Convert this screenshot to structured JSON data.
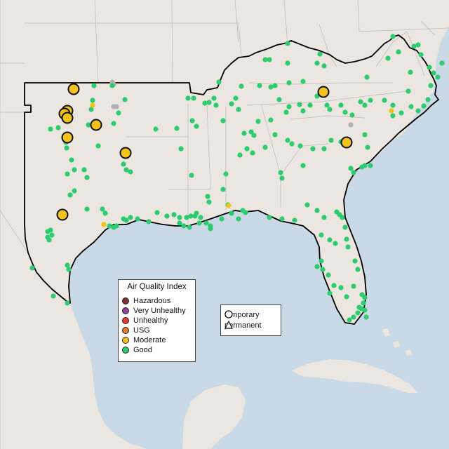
{
  "legend": {
    "title": "Air Quality Index",
    "items": [
      {
        "label": "Hazardous",
        "color": "#7e2f3b"
      },
      {
        "label": "Very Unhealthy",
        "color": "#8f3f97"
      },
      {
        "label": "Unhealthy",
        "color": "#e8382f"
      },
      {
        "label": "USG",
        "color": "#e8782a"
      },
      {
        "label": "Moderate",
        "color": "#f3c21b"
      },
      {
        "label": "Good",
        "color": "#2ecc71"
      }
    ]
  },
  "shape_legend": {
    "items": [
      {
        "label": "temporary",
        "shape": "circle-icon"
      },
      {
        "label": "permanent",
        "shape": "triangle-icon"
      }
    ]
  },
  "colors": {
    "water": "#c9d9e6",
    "land": "#ebe6df",
    "region_outline": "#000000",
    "good": "#2ecc71",
    "moderate": "#f3c21b",
    "no_data": "#b0b0b0"
  },
  "stations": {
    "moderate_temporary_count": 10,
    "moderate_permanent_count": 3
  }
}
